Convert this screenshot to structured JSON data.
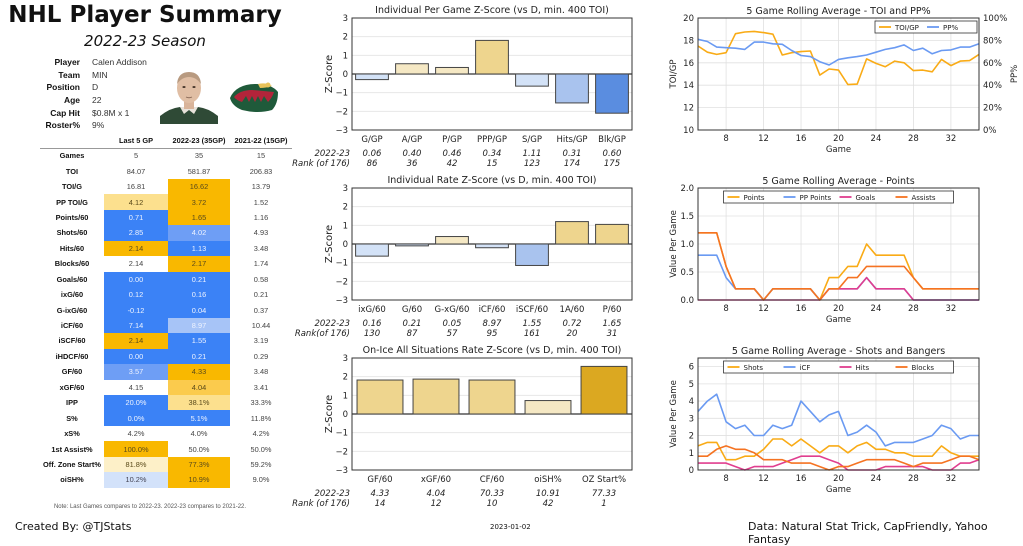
{
  "header": {
    "title": "NHL Player Summary",
    "subtitle": "2022-23 Season"
  },
  "player_info": [
    {
      "key": "Player",
      "value": "Calen Addison"
    },
    {
      "key": "Team",
      "value": "MIN"
    },
    {
      "key": "Position",
      "value": "D"
    },
    {
      "key": "Age",
      "value": "22"
    },
    {
      "key": "Cap Hit",
      "value": "$0.8M x 1"
    },
    {
      "key": "Roster%",
      "value": "9%"
    }
  ],
  "images": {
    "headshot": "player-headshot",
    "logo": "team-logo-minnesota-wild"
  },
  "colors": {
    "gold_strong": "#F9B800",
    "gold_mid": "#FBCB4D",
    "gold_light": "#FCE08E",
    "gold_pale": "#FDF0C8",
    "blue_strong": "#3B82F6",
    "blue_mid": "#6E9EF5",
    "blue_light": "#A7C4F7",
    "blue_pale": "#D3E2FA",
    "bar_gold_pale": "#F5E8C4",
    "bar_gold_light": "#EED58E",
    "bar_gold_dark": "#DBA821",
    "bar_blue_pale": "#D3E2F7",
    "bar_blue_light": "#A9C3EE",
    "bar_blue_dark": "#5A8DE0",
    "line_orange": "#F9AB16",
    "line_blue": "#6A9AF2",
    "line_pink": "#E03E8F",
    "line_darkorange": "#F57322"
  },
  "stats_table": {
    "columns": [
      "",
      "Last 5 GP",
      "2022-23 (35GP)",
      "2021-22 (15GP)"
    ],
    "rows": [
      {
        "label": "Games",
        "values": [
          "5",
          "35",
          "15"
        ],
        "colors": [
          "",
          "",
          ""
        ]
      },
      {
        "label": "TOI",
        "values": [
          "84.07",
          "581.87",
          "206.83"
        ],
        "colors": [
          "",
          "",
          ""
        ]
      },
      {
        "label": "TOI/G",
        "values": [
          "16.81",
          "16.62",
          "13.79"
        ],
        "colors": [
          "",
          "gold_strong",
          ""
        ]
      },
      {
        "label": "PP TOI/G",
        "values": [
          "4.12",
          "3.72",
          "1.52"
        ],
        "colors": [
          "gold_light",
          "gold_strong",
          ""
        ]
      },
      {
        "label": "Points/60",
        "values": [
          "0.71",
          "1.65",
          "1.16"
        ],
        "colors": [
          "blue_strong",
          "gold_strong",
          ""
        ]
      },
      {
        "label": "Shots/60",
        "values": [
          "2.85",
          "4.02",
          "4.93"
        ],
        "colors": [
          "blue_strong",
          "blue_mid",
          ""
        ]
      },
      {
        "label": "Hits/60",
        "values": [
          "2.14",
          "1.13",
          "3.48"
        ],
        "colors": [
          "gold_strong",
          "blue_strong",
          ""
        ]
      },
      {
        "label": "Blocks/60",
        "values": [
          "2.14",
          "2.17",
          "1.74"
        ],
        "colors": [
          "",
          "gold_strong",
          ""
        ]
      },
      {
        "label": "Goals/60",
        "values": [
          "0.00",
          "0.21",
          "0.58"
        ],
        "colors": [
          "blue_strong",
          "blue_strong",
          ""
        ]
      },
      {
        "label": "ixG/60",
        "values": [
          "0.12",
          "0.16",
          "0.21"
        ],
        "colors": [
          "blue_strong",
          "blue_strong",
          ""
        ]
      },
      {
        "label": "G-ixG/60",
        "values": [
          "-0.12",
          "0.04",
          "0.37"
        ],
        "colors": [
          "blue_strong",
          "blue_strong",
          ""
        ]
      },
      {
        "label": "iCF/60",
        "values": [
          "7.14",
          "8.97",
          "10.44"
        ],
        "colors": [
          "blue_strong",
          "blue_light",
          ""
        ]
      },
      {
        "label": "iSCF/60",
        "values": [
          "2.14",
          "1.55",
          "3.19"
        ],
        "colors": [
          "gold_strong",
          "blue_strong",
          ""
        ]
      },
      {
        "label": "iHDCF/60",
        "values": [
          "0.00",
          "0.21",
          "0.29"
        ],
        "colors": [
          "blue_strong",
          "blue_strong",
          ""
        ]
      },
      {
        "label": "GF/60",
        "values": [
          "3.57",
          "4.33",
          "3.48"
        ],
        "colors": [
          "blue_mid",
          "gold_strong",
          ""
        ]
      },
      {
        "label": "xGF/60",
        "values": [
          "4.15",
          "4.04",
          "3.41"
        ],
        "colors": [
          "",
          "gold_mid",
          ""
        ]
      },
      {
        "label": "IPP",
        "values": [
          "20.0%",
          "38.1%",
          "33.3%"
        ],
        "colors": [
          "blue_strong",
          "gold_light",
          ""
        ]
      },
      {
        "label": "S%",
        "values": [
          "0.0%",
          "5.1%",
          "11.8%"
        ],
        "colors": [
          "blue_strong",
          "blue_strong",
          ""
        ]
      },
      {
        "label": "xS%",
        "values": [
          "4.2%",
          "4.0%",
          "4.2%"
        ],
        "colors": [
          "",
          "",
          ""
        ]
      },
      {
        "label": "1st Assist%",
        "values": [
          "100.0%",
          "50.0%",
          "50.0%"
        ],
        "colors": [
          "gold_strong",
          "",
          ""
        ]
      },
      {
        "label": "Off. Zone Start%",
        "values": [
          "81.8%",
          "77.3%",
          "59.2%"
        ],
        "colors": [
          "gold_pale",
          "gold_strong",
          ""
        ]
      },
      {
        "label": "oiSH%",
        "values": [
          "10.2%",
          "10.9%",
          "9.0%"
        ],
        "colors": [
          "blue_pale",
          "gold_strong",
          ""
        ]
      }
    ],
    "note": "Note: Last Games compares to 2022-23. 2022-23 compares to 2021-22."
  },
  "footer": {
    "created_by": "Created By: @TJStats",
    "date": "2023-01-02",
    "data_source": "Data: Natural Stat Trick, CapFriendly, Yahoo Fantasy"
  },
  "chart_data": [
    {
      "id": "zbar1",
      "type": "bar",
      "title": "Individual Per Game Z-Score (vs D, min. 400 TOI)",
      "ylabel": "Z-Score",
      "ylim": [
        -3,
        3
      ],
      "yticks": [
        "3",
        "2",
        "1",
        "0",
        "−1",
        "−2",
        "−3"
      ],
      "categories": [
        "G/GP",
        "A/GP",
        "P/GP",
        "PPP/GP",
        "S/GP",
        "Hits/GP",
        "Blk/GP"
      ],
      "values": [
        -0.3,
        0.55,
        0.35,
        1.8,
        -0.65,
        -1.55,
        -2.1
      ],
      "bar_colors": [
        "bar_blue_pale",
        "bar_gold_pale",
        "bar_gold_pale",
        "bar_gold_light",
        "bar_blue_pale",
        "bar_blue_light",
        "bar_blue_dark"
      ],
      "row1_label": "2022-23",
      "row1": [
        "0.06",
        "0.40",
        "0.46",
        "0.34",
        "1.11",
        "0.31",
        "0.60"
      ],
      "row2_label": "Rank (of 176)",
      "row2": [
        "86",
        "36",
        "42",
        "15",
        "123",
        "174",
        "175"
      ]
    },
    {
      "id": "zbar2",
      "type": "bar",
      "title": "Individual Rate Z-Score (vs D, min. 400 TOI)",
      "ylabel": "Z-Score",
      "ylim": [
        -3,
        3
      ],
      "yticks": [
        "3",
        "2",
        "1",
        "0",
        "−1",
        "−2",
        "−3"
      ],
      "categories": [
        "ixG/60",
        "G/60",
        "G-xG/60",
        "iCF/60",
        "iSCF/60",
        "1A/60",
        "P/60"
      ],
      "values": [
        -0.65,
        -0.1,
        0.4,
        -0.2,
        -1.15,
        1.2,
        1.05
      ],
      "bar_colors": [
        "bar_blue_pale",
        "bar_blue_pale",
        "bar_gold_pale",
        "bar_blue_pale",
        "bar_blue_light",
        "bar_gold_light",
        "bar_gold_light"
      ],
      "row1_label": "2022-23",
      "row1": [
        "0.16",
        "0.21",
        "0.05",
        "8.97",
        "1.55",
        "0.72",
        "1.65"
      ],
      "row2_label": "Rank(of 176)",
      "row2": [
        "130",
        "87",
        "57",
        "95",
        "161",
        "20",
        "31"
      ]
    },
    {
      "id": "zbar3",
      "type": "bar",
      "title": "On-Ice All Situations Rate Z-Score (vs D, min. 400 TOI)",
      "ylabel": "Z-Score",
      "ylim": [
        -3,
        3
      ],
      "yticks": [
        "3",
        "2",
        "1",
        "0",
        "−1",
        "−2",
        "−3"
      ],
      "categories": [
        "GF/60",
        "xGF/60",
        "CF/60",
        "oiSH%",
        "OZ Start%"
      ],
      "values": [
        1.82,
        1.87,
        1.82,
        0.72,
        2.55
      ],
      "bar_colors": [
        "bar_gold_light",
        "bar_gold_light",
        "bar_gold_light",
        "bar_gold_pale",
        "bar_gold_dark"
      ],
      "row1_label": "2022-23",
      "row1": [
        "4.33",
        "4.04",
        "70.33",
        "10.91",
        "77.33"
      ],
      "row2_label": "Rank (of 176)",
      "row2": [
        "14",
        "12",
        "10",
        "42",
        "1"
      ]
    },
    {
      "id": "line1",
      "type": "line",
      "title": "5 Game Rolling Average - TOI and PP%",
      "xlabel": "Game",
      "ylabel": "TOI/GP",
      "y2label": "PP%",
      "xlim": [
        5,
        35
      ],
      "ylim": [
        10,
        20
      ],
      "y2lim": [
        0,
        100
      ],
      "xticks": [
        8,
        12,
        16,
        20,
        24,
        28,
        32
      ],
      "yticks": [
        10,
        12,
        14,
        16,
        18,
        20
      ],
      "y2ticks": [
        "0%",
        "20%",
        "40%",
        "60%",
        "80%",
        "100%"
      ],
      "legend": "top-right",
      "x": [
        5,
        6,
        7,
        8,
        9,
        10,
        11,
        12,
        13,
        14,
        15,
        16,
        17,
        18,
        19,
        20,
        21,
        22,
        23,
        24,
        25,
        26,
        27,
        28,
        29,
        30,
        31,
        32,
        33,
        34,
        35
      ],
      "series": [
        {
          "name": "TOI/GP",
          "axis": "left",
          "color": "line_orange",
          "values": [
            17.5,
            16.95,
            16.75,
            16.9,
            18.6,
            18.75,
            18.8,
            18.7,
            18.55,
            16.7,
            16.9,
            17.0,
            17.05,
            14.9,
            15.45,
            15.35,
            14.05,
            14.1,
            16.35,
            15.95,
            15.65,
            16.15,
            16.0,
            15.3,
            15.35,
            15.2,
            16.3,
            15.75,
            16.15,
            16.2,
            16.75
          ]
        },
        {
          "name": "PP%",
          "axis": "right",
          "color": "line_blue",
          "values": [
            81,
            79,
            74,
            73.5,
            73,
            72,
            78.5,
            78.5,
            77,
            76.5,
            71,
            66.5,
            65.5,
            61,
            58,
            63,
            64.5,
            65.5,
            67,
            69.5,
            72,
            73.5,
            76,
            71,
            73,
            68,
            71,
            71.5,
            74,
            74,
            77
          ]
        }
      ]
    },
    {
      "id": "line2",
      "type": "line",
      "title": "5 Game Rolling Average - Points",
      "xlabel": "Game",
      "ylabel": "Value Per Game",
      "xlim": [
        5,
        35
      ],
      "ylim": [
        0,
        2.0
      ],
      "xticks": [
        8,
        12,
        16,
        20,
        24,
        28,
        32
      ],
      "yticks": [
        "0.0",
        "0.5",
        "1.0",
        "1.5",
        "2.0"
      ],
      "legend": "top",
      "x": [
        5,
        6,
        7,
        8,
        9,
        10,
        11,
        12,
        13,
        14,
        15,
        16,
        17,
        18,
        19,
        20,
        21,
        22,
        23,
        24,
        25,
        26,
        27,
        28,
        29,
        30,
        31,
        32,
        33,
        34,
        35
      ],
      "series": [
        {
          "name": "Points",
          "color": "line_orange",
          "values": [
            1.2,
            1.2,
            1.2,
            0.6,
            0.2,
            0.2,
            0.2,
            0.0,
            0.2,
            0.2,
            0.2,
            0.2,
            0.2,
            0.0,
            0.4,
            0.4,
            0.6,
            0.6,
            1.0,
            0.8,
            0.8,
            0.8,
            0.8,
            0.4,
            0.2,
            0.2,
            0.2,
            0.2,
            0.2,
            0.2,
            0.2
          ]
        },
        {
          "name": "PP Points",
          "color": "line_blue",
          "values": [
            0.8,
            0.8,
            0.8,
            0.4,
            0.2,
            0.2,
            0.2,
            0.0,
            0.2,
            0.2,
            0.2,
            0.2,
            0.2,
            0.0,
            0.2,
            0.2,
            0.2,
            0.2,
            0.4,
            0.2,
            0.2,
            0.2,
            0.2,
            0.0,
            0.0,
            0.0,
            0.0,
            0.0,
            0.0,
            0.0,
            0.0
          ]
        },
        {
          "name": "Goals",
          "color": "line_pink",
          "values": [
            0,
            0,
            0,
            0,
            0,
            0,
            0,
            0,
            0,
            0,
            0,
            0,
            0,
            0,
            0.2,
            0.2,
            0.2,
            0.2,
            0.4,
            0.2,
            0.2,
            0.2,
            0.2,
            0,
            0,
            0,
            0,
            0,
            0,
            0,
            0
          ]
        },
        {
          "name": "Assists",
          "color": "line_darkorange",
          "values": [
            1.2,
            1.2,
            1.2,
            0.6,
            0.2,
            0.2,
            0.2,
            0.0,
            0.2,
            0.2,
            0.2,
            0.2,
            0.2,
            0.0,
            0.2,
            0.2,
            0.4,
            0.4,
            0.6,
            0.6,
            0.6,
            0.6,
            0.6,
            0.4,
            0.2,
            0.2,
            0.2,
            0.2,
            0.2,
            0.2,
            0.2
          ]
        }
      ]
    },
    {
      "id": "line3",
      "type": "line",
      "title": "5 Game Rolling Average - Shots and Bangers",
      "xlabel": "Game",
      "ylabel": "Value Per Game",
      "xlim": [
        5,
        35
      ],
      "ylim": [
        0,
        6.5
      ],
      "xticks": [
        8,
        12,
        16,
        20,
        24,
        28,
        32
      ],
      "yticks": [
        "0",
        "1",
        "2",
        "3",
        "4",
        "5",
        "6"
      ],
      "legend": "top",
      "x": [
        5,
        6,
        7,
        8,
        9,
        10,
        11,
        12,
        13,
        14,
        15,
        16,
        17,
        18,
        19,
        20,
        21,
        22,
        23,
        24,
        25,
        26,
        27,
        28,
        29,
        30,
        31,
        32,
        33,
        34,
        35
      ],
      "series": [
        {
          "name": "Shots",
          "color": "line_orange",
          "values": [
            1.4,
            1.6,
            1.6,
            0.6,
            0.6,
            0.8,
            0.8,
            1.2,
            1.8,
            1.8,
            1.4,
            1.8,
            1.4,
            1.0,
            1.4,
            1.4,
            1.0,
            1.4,
            1.6,
            1.2,
            1.2,
            1.0,
            1.0,
            0.8,
            0.8,
            0.8,
            1.4,
            1.0,
            0.8,
            0.8,
            0.8
          ]
        },
        {
          "name": "iCF",
          "color": "line_blue",
          "values": [
            3.4,
            4.0,
            4.4,
            2.8,
            2.4,
            2.6,
            2.0,
            2.0,
            2.6,
            2.4,
            2.6,
            4.0,
            3.4,
            2.8,
            3.2,
            3.4,
            2.0,
            2.2,
            2.6,
            2.2,
            1.4,
            1.6,
            1.6,
            1.6,
            1.8,
            2.0,
            2.6,
            2.4,
            1.8,
            2.0,
            2.0
          ]
        },
        {
          "name": "Hits",
          "color": "line_pink",
          "values": [
            0.4,
            0.4,
            0.4,
            0.4,
            0.2,
            0.0,
            0.2,
            0.2,
            0.2,
            0.4,
            0.6,
            0.8,
            0.8,
            0.8,
            0.6,
            0.4,
            0.0,
            0.0,
            0.0,
            0.0,
            0.2,
            0.2,
            0.2,
            0.2,
            0.2,
            0.0,
            0.0,
            0.0,
            0.4,
            0.4,
            0.6
          ]
        },
        {
          "name": "Blocks",
          "color": "line_darkorange",
          "values": [
            0.8,
            0.8,
            1.2,
            1.4,
            1.2,
            1.2,
            1.0,
            0.6,
            0.6,
            0.6,
            0.4,
            0.4,
            0.4,
            0.2,
            0.0,
            0.2,
            0.2,
            0.4,
            0.6,
            0.6,
            0.6,
            0.6,
            0.4,
            0.2,
            0.4,
            0.4,
            0.4,
            0.6,
            0.8,
            0.8,
            0.6
          ]
        }
      ]
    }
  ]
}
